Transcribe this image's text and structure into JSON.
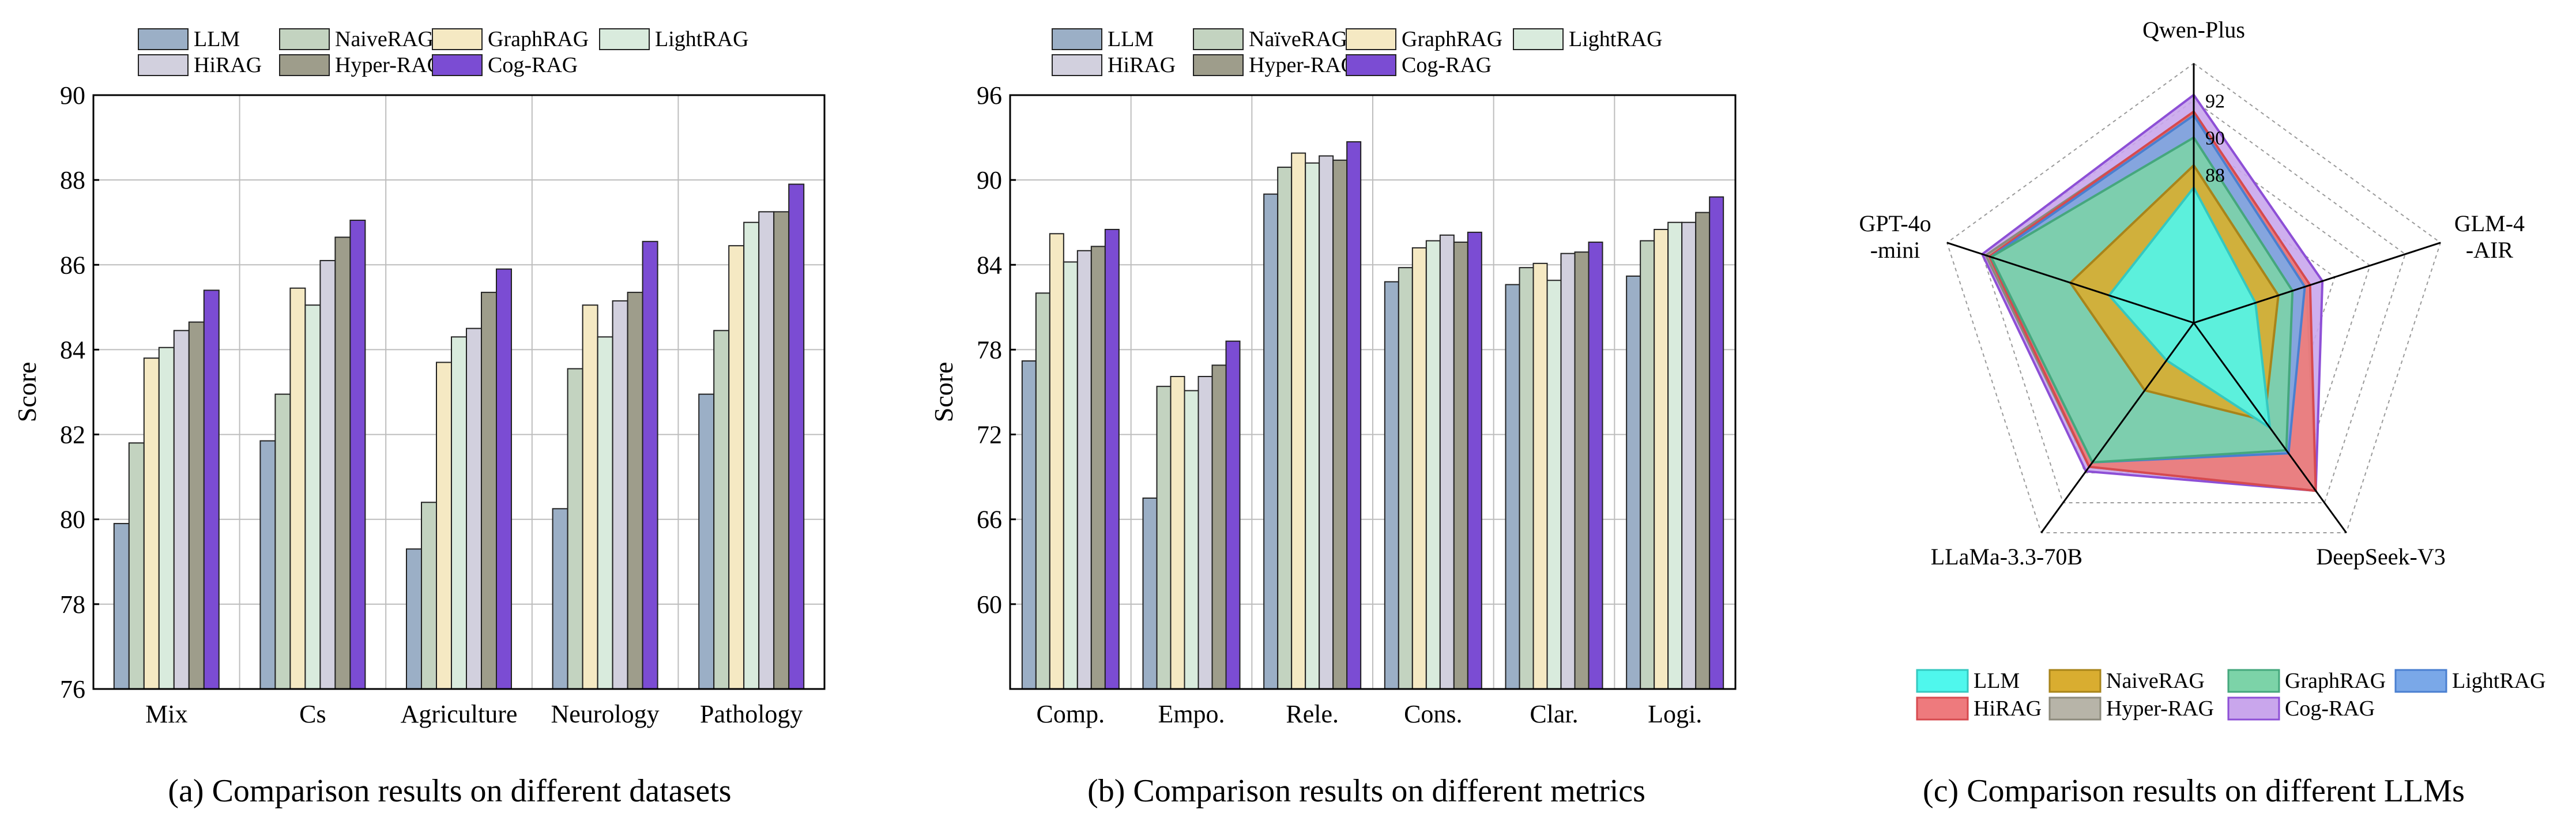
{
  "chart_data": [
    {
      "type": "bar",
      "caption": "(a) Comparison results on different datasets",
      "ylabel": "Score",
      "ylim": [
        76,
        90
      ],
      "yticks": [
        "76",
        "78",
        "80",
        "82",
        "84",
        "86",
        "88",
        "90"
      ],
      "grid": true,
      "legend_position": "top",
      "categories": [
        "Mix",
        "Cs",
        "Agriculture",
        "Neurology",
        "Pathology"
      ],
      "series": [
        {
          "name": "LLM",
          "values": [
            79.9,
            81.85,
            79.3,
            80.25,
            82.95
          ]
        },
        {
          "name": "NaiveRAG",
          "values": [
            81.8,
            82.95,
            80.4,
            83.55,
            84.45
          ]
        },
        {
          "name": "GraphRAG",
          "values": [
            83.8,
            85.45,
            83.7,
            85.05,
            86.45
          ]
        },
        {
          "name": "LightRAG",
          "values": [
            84.05,
            85.05,
            84.3,
            84.3,
            87.0
          ]
        },
        {
          "name": "HiRAG",
          "values": [
            84.45,
            86.1,
            84.5,
            85.15,
            87.25
          ]
        },
        {
          "name": "Hyper-RAG",
          "values": [
            84.65,
            86.65,
            85.35,
            85.35,
            87.25
          ]
        },
        {
          "name": "Cog-RAG",
          "values": [
            85.4,
            87.05,
            85.9,
            86.55,
            87.9
          ]
        }
      ]
    },
    {
      "type": "bar",
      "caption": "(b) Comparison results on different metrics",
      "ylabel": "Score",
      "ylim": [
        54,
        96
      ],
      "yticks": [
        "60",
        "66",
        "72",
        "78",
        "84",
        "90",
        "96"
      ],
      "grid": true,
      "legend_position": "top",
      "categories": [
        "Comp.",
        "Empo.",
        "Rele.",
        "Cons.",
        "Clar.",
        "Logi."
      ],
      "series": [
        {
          "name": "LLM",
          "values": [
            77.2,
            67.5,
            89.0,
            82.8,
            82.6,
            83.2
          ]
        },
        {
          "name": "NaïveRAG",
          "values": [
            82.0,
            75.4,
            90.9,
            83.8,
            83.8,
            85.7
          ]
        },
        {
          "name": "GraphRAG",
          "values": [
            86.2,
            76.1,
            91.9,
            85.2,
            84.1,
            86.5
          ]
        },
        {
          "name": "LightRAG",
          "values": [
            84.2,
            75.1,
            91.2,
            85.7,
            82.9,
            87.0
          ]
        },
        {
          "name": "HiRAG",
          "values": [
            85.0,
            76.1,
            91.7,
            86.1,
            84.8,
            87.0
          ]
        },
        {
          "name": "Hyper-RAG",
          "values": [
            85.3,
            76.9,
            91.4,
            85.6,
            84.9,
            87.7
          ]
        },
        {
          "name": "Cog-RAG",
          "values": [
            86.5,
            78.6,
            92.7,
            86.3,
            85.6,
            88.8
          ]
        }
      ]
    },
    {
      "type": "radar",
      "caption": "(c) Comparison results on different LLMs",
      "axes": [
        "Qwen-Plus",
        "GLM-4\n-AIR",
        "DeepSeek-V3",
        "LLaMa-3.3-70B",
        "GPT-4o\n-mini"
      ],
      "rticks": [
        "88",
        "90",
        "92"
      ],
      "range": [
        80,
        94
      ],
      "legend_position": "bottom",
      "series": [
        {
          "name": "LLM",
          "values": [
            87.3,
            83.5,
            87.0,
            82.5,
            84.8
          ]
        },
        {
          "name": "NaiveRAG",
          "values": [
            88.5,
            84.8,
            86.5,
            84.5,
            87.0
          ]
        },
        {
          "name": "GraphRAG",
          "values": [
            90.0,
            85.6,
            88.5,
            89.3,
            91.5
          ]
        },
        {
          "name": "LightRAG",
          "values": [
            91.2,
            86.3,
            88.7,
            89.3,
            91.5
          ]
        },
        {
          "name": "HiRAG",
          "values": [
            91.4,
            86.6,
            91.2,
            89.6,
            91.6
          ]
        },
        {
          "name": "Hyper-RAG",
          "values": [
            91.3,
            86.4,
            91.2,
            89.6,
            91.8
          ]
        },
        {
          "name": "Cog-RAG",
          "values": [
            92.3,
            87.3,
            91.2,
            89.9,
            92.0
          ]
        }
      ]
    }
  ],
  "colors": {
    "bars": [
      "#9bafc6",
      "#c3d3c0",
      "#f5e9c3",
      "#d9ebdd",
      "#d2d0de",
      "#9e9d8b",
      "#7b4cd3"
    ],
    "radar_fill": [
      "#4ff7ed",
      "#d9ad30",
      "#7cd3a8",
      "#7aa8e8",
      "#ee7a7d",
      "#b7b4a8",
      "#c9a6ec"
    ],
    "radar_line": [
      "#34c8c0",
      "#a8841a",
      "#45a77d",
      "#4a7fd0",
      "#d64a4f",
      "#8c8a7c",
      "#8d4fd6"
    ],
    "radar_legend_names": [
      "LLM",
      "NaiveRAG",
      "GraphRAG",
      "LightRAG",
      "HiRAG",
      "Hyper-RAG",
      "Cog-RAG"
    ]
  }
}
